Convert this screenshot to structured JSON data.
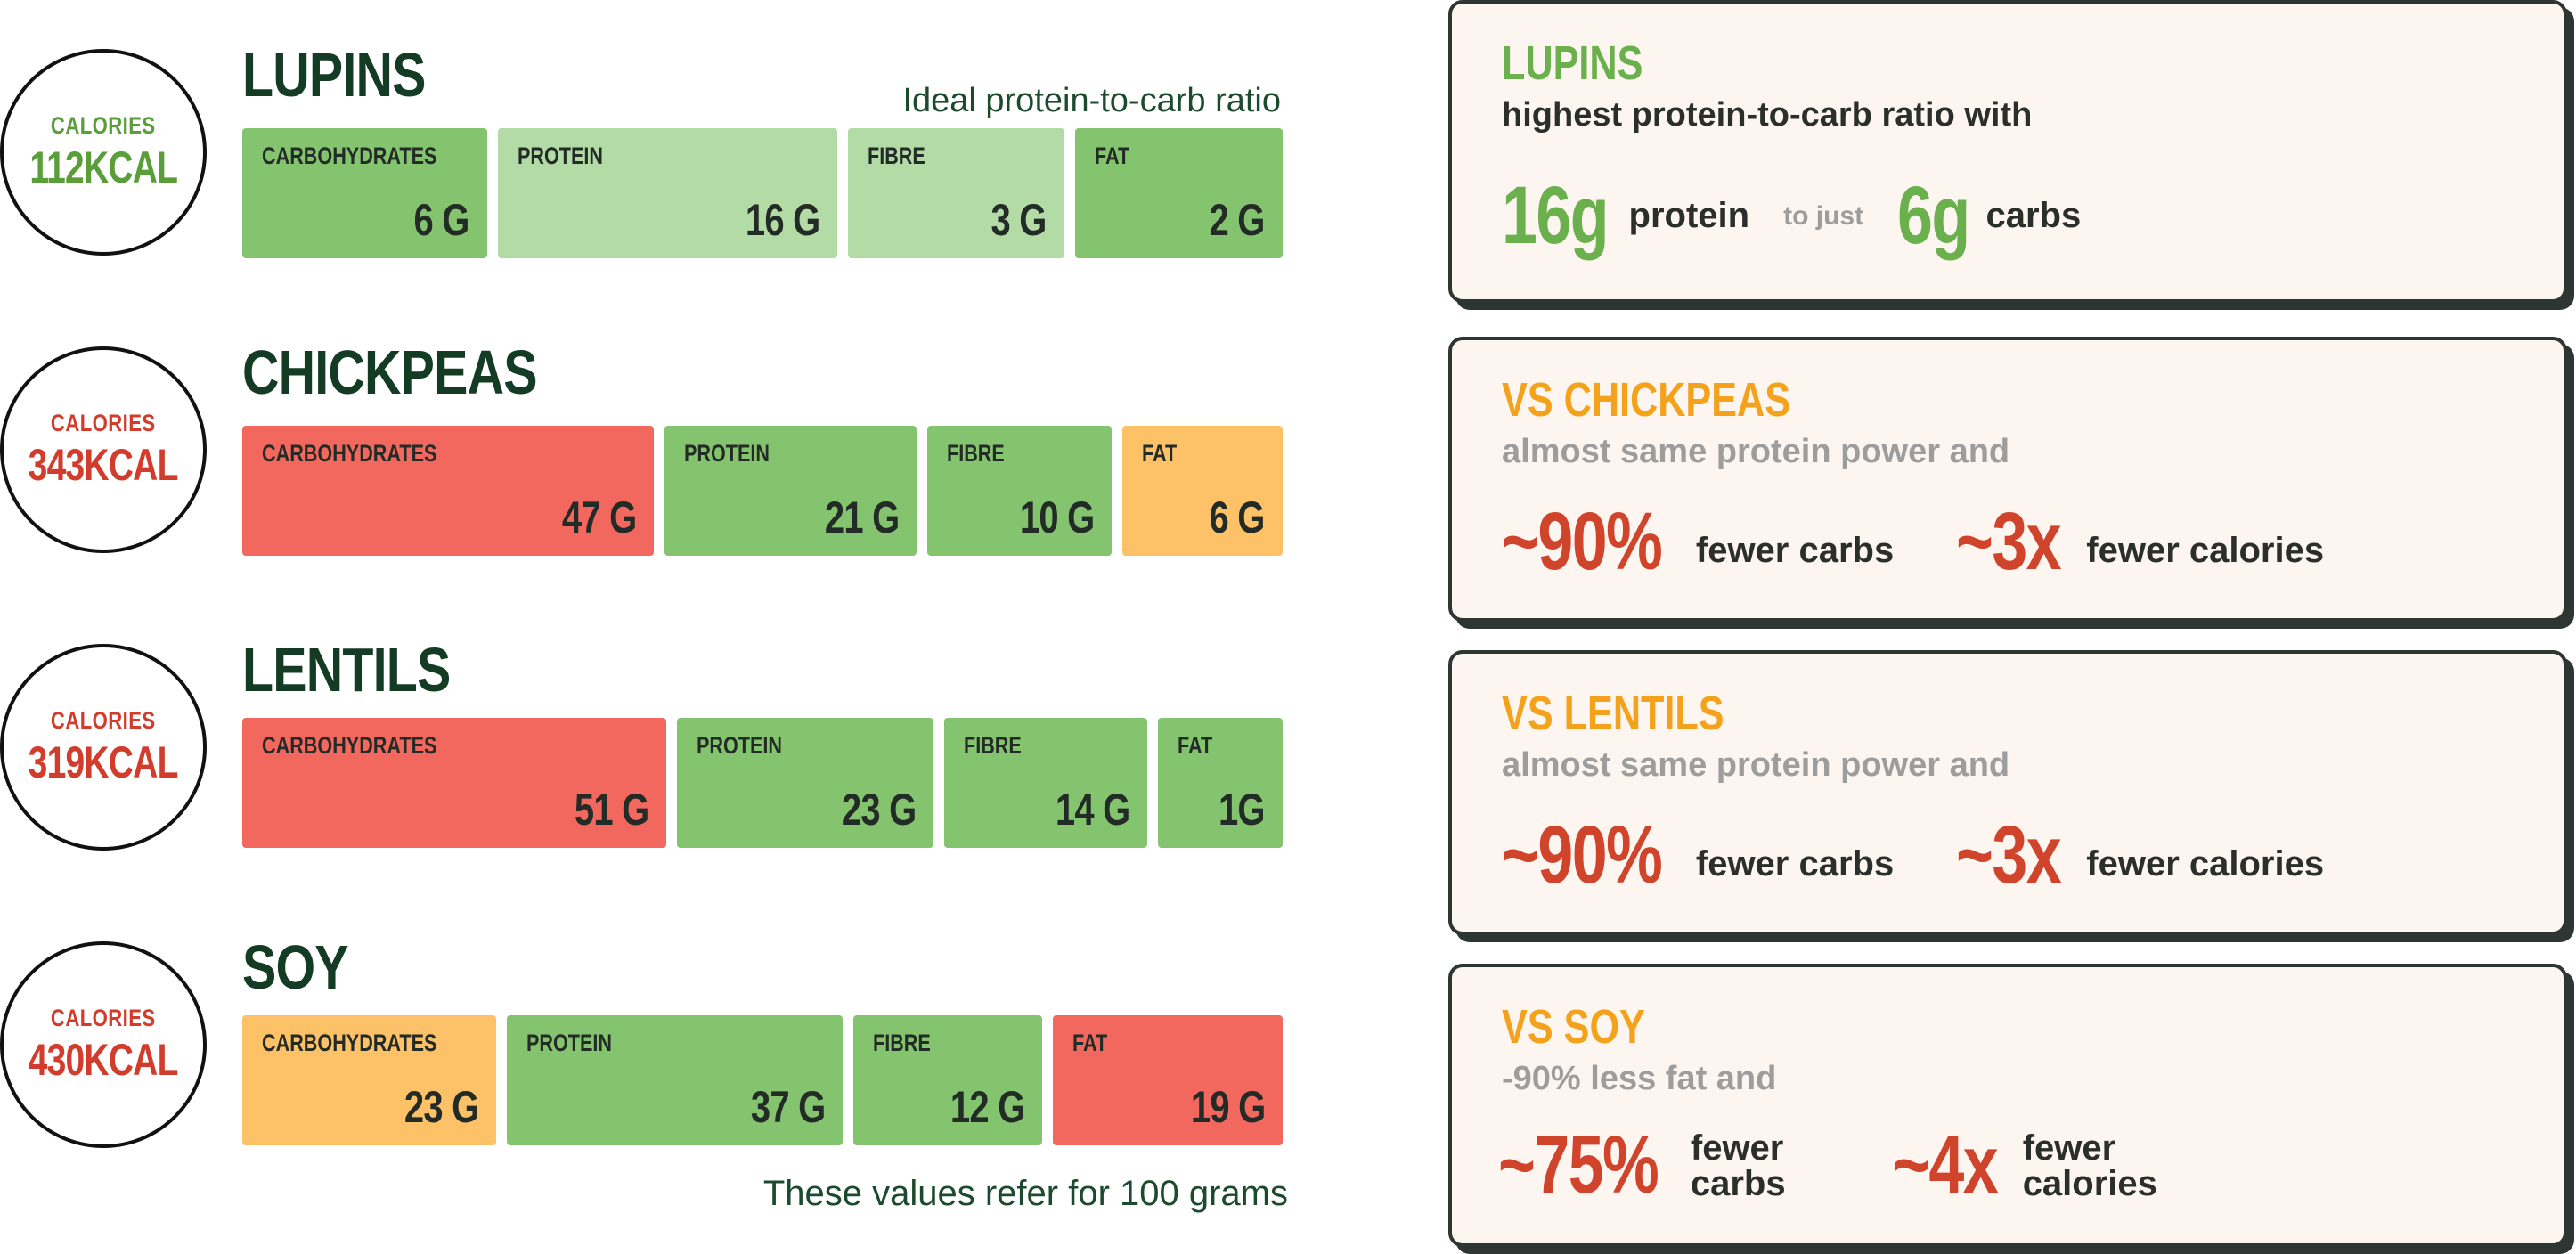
{
  "chart_data": {
    "type": "bar",
    "orientation": "horizontal stacked",
    "unit": "G",
    "categories": [
      "CARBOHYDRATES",
      "PROTEIN",
      "FIBRE",
      "FAT"
    ],
    "header_note": "Ideal protein-to-carb ratio",
    "footnote": "These values refer for 100 grams",
    "calories_label": "CALORIES",
    "foods": [
      {
        "name": "LUPINS",
        "calories": "112KCAL",
        "calories_color": "#5a9e3a",
        "values": [
          6,
          16,
          3,
          2
        ],
        "value_labels": [
          "6 G",
          "16 G",
          "3 G",
          "2 G"
        ],
        "colors": [
          "#85c46f",
          "#b3dba5",
          "#b3dba5",
          "#85c46f"
        ]
      },
      {
        "name": "CHICKPEAS",
        "calories": "343KCAL",
        "calories_color": "#d23c2c",
        "values": [
          47,
          21,
          10,
          6
        ],
        "value_labels": [
          "47 G",
          "21 G",
          "10 G",
          "6 G"
        ],
        "colors": [
          "#f2685e",
          "#85c46f",
          "#85c46f",
          "#fdc167"
        ]
      },
      {
        "name": "LENTILS",
        "calories": "319KCAL",
        "calories_color": "#d23c2c",
        "values": [
          51,
          23,
          14,
          1
        ],
        "value_labels": [
          "51 G",
          "23 G",
          "14 G",
          "1G"
        ],
        "colors": [
          "#f2685e",
          "#85c46f",
          "#85c46f",
          "#85c46f"
        ]
      },
      {
        "name": "SOY",
        "calories": "430KCAL",
        "calories_color": "#d23c2c",
        "values": [
          23,
          37,
          12,
          19
        ],
        "value_labels": [
          "23 G",
          "37 G",
          "12 G",
          "19 G"
        ],
        "colors": [
          "#fdc167",
          "#85c46f",
          "#85c46f",
          "#f2685e"
        ]
      }
    ]
  },
  "cards": {
    "lupins": {
      "title": "LUPINS",
      "subtitle": "highest protein-to-carb ratio with",
      "protein_value": "16g",
      "protein_text": "protein",
      "connector": "to just",
      "carb_value": "6g",
      "carb_text": "carbs"
    },
    "chickpeas": {
      "title": "VS CHICKPEAS",
      "subtitle": "almost same protein power and",
      "stat1": "~90%",
      "stat1_text": "fewer carbs",
      "stat2": "~3x",
      "stat2_text": "fewer calories"
    },
    "lentils": {
      "title": "VS LENTILS",
      "subtitle": "almost same protein power and",
      "stat1": "~90%",
      "stat1_text": "fewer carbs",
      "stat2": "~3x",
      "stat2_text": "fewer calories"
    },
    "soy": {
      "title": "VS SOY",
      "subtitle": "-90% less fat and",
      "stat1": "~75%",
      "stat1_text_line1": "fewer",
      "stat1_text_line2": "carbs",
      "stat2": "~4x",
      "stat2_text_line1": "fewer",
      "stat2_text_line2": "calories"
    }
  },
  "colors": {
    "green_title": "#6ab04c",
    "orange_title": "#f4a21c",
    "red_stat": "#d1442c",
    "grey_sub": "#9d9d9d",
    "dark_sub": "#2b2f2c"
  }
}
